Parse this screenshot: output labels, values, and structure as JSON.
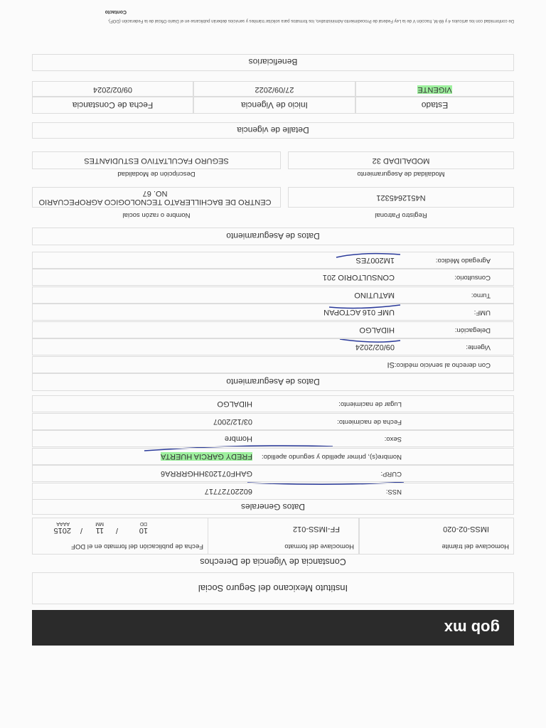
{
  "header": {
    "logo": "gob mx",
    "institution": "Instituto Mexicano del Seguro Social",
    "title": "Constancia de Vigencia de Derechos"
  },
  "format_table": {
    "headers": [
      "Homoclave del trámite",
      "Homoclave del formato",
      "Fecha de publicación del formato en el DOF"
    ],
    "values": [
      "IMSS-02-020",
      "FF-IMSS-012"
    ],
    "date": {
      "day": "10",
      "month": "11",
      "year": "2015",
      "separator": "/",
      "day_label": "DD",
      "month_label": "MM",
      "year_label": "AAAA"
    }
  },
  "general": {
    "title": "Datos Generales",
    "fields": [
      {
        "label": "NSS:",
        "value": "60220727717"
      },
      {
        "label": "CURP:",
        "value": "GAHF071203HHGRRRA6"
      },
      {
        "label": "Nombre(s), primer apellido y segundo apellido:",
        "value": "FREDY GARCIA HUERTA"
      },
      {
        "label": "Sexo:",
        "value": "Hombre"
      },
      {
        "label": "Fecha de nacimiento:",
        "value": "03/12/2007"
      },
      {
        "label": "Lugar de nacimiento:",
        "value": "HIDALGO"
      }
    ]
  },
  "coverage": {
    "title": "Datos de Aseguramiento",
    "fields": [
      {
        "label": "Con derecho al servicio médico:",
        "value": "SI"
      },
      {
        "label": "Vigente:",
        "value": "09/02/2024"
      },
      {
        "label": "Delegación:",
        "value": "HIDALGO"
      },
      {
        "label": "UMF:",
        "value": "UMF 016 ACTOPAN"
      },
      {
        "label": "Turno:",
        "value": "MATUTINO"
      },
      {
        "label": "Consultorio:",
        "value": "CONSULTORIO 201"
      },
      {
        "label": "Agregado Médico:",
        "value": "1M2007ES"
      }
    ]
  },
  "employer": {
    "title": "Datos de Aseguramiento",
    "registry_label": "Registro Patronal",
    "registry": "N4512645321",
    "name_label": "Nombre o razón social",
    "name": "CENTRO DE BACHILLERATO TECNOLOGICO AGROPECUARIO NO. 67",
    "modality_label": "Modalidad de Aseguramiento",
    "modality": "MODALIDAD 32",
    "description_label": "Descripción de Modalidad",
    "description": "SEGURO FACULTATIVO ESTUDIANTES"
  },
  "validity": {
    "title": "Detalle de vigencia",
    "headers": [
      "Estado",
      "Inicio de Vigencia",
      "Fecha de Constancia"
    ],
    "values": [
      "VIGENTE",
      "27/09/2022",
      "09/02/2024"
    ]
  },
  "beneficiaries": {
    "title": "Beneficiarios"
  },
  "footer": {
    "note": "De conformidad con los artículos 4 y 69-M, fracción V de la Ley Federal de Procedimiento Administrativo, los formatos para solicitar trámites y servicios deberán publicarse en el Diario Oficial de la Federación (DOF).",
    "contact": "Contacto"
  }
}
